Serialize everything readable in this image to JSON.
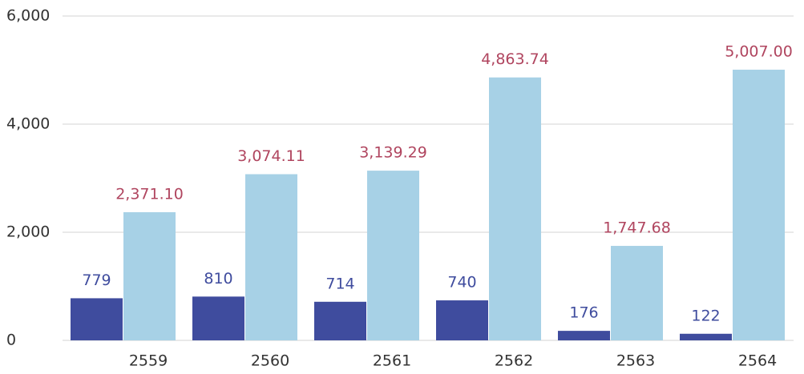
{
  "chart_data": {
    "type": "bar",
    "categories": [
      "2559",
      "2560",
      "2561",
      "2562",
      "2563",
      "2564"
    ],
    "series": [
      {
        "color": "#3f4c9e",
        "values": [
          779,
          810,
          714,
          740,
          176,
          122
        ]
      },
      {
        "color": "#a7d1e6",
        "values": [
          2371.1,
          3074.11,
          3139.29,
          4863.74,
          1747.68,
          5007.0
        ],
        "value_labels": [
          "2,371.10",
          "3,074.11",
          "3,139.29",
          "4,863.74",
          "1,747.68",
          "5,007.00"
        ]
      }
    ],
    "ylim": [
      0,
      6000
    ],
    "yticks": [
      0,
      {
        "value": 2000,
        "label": "2,000"
      },
      {
        "value": 4000,
        "label": "4,000"
      },
      {
        "value": 6000,
        "label": "6,000"
      }
    ],
    "grid": true
  }
}
